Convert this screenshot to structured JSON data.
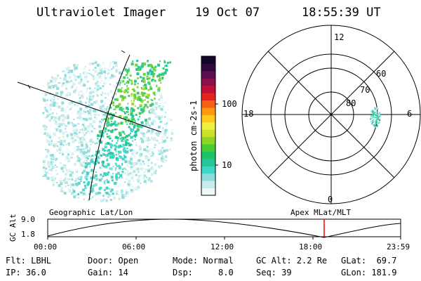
{
  "header": {
    "instrument": "Ultraviolet Imager",
    "date": "19 Oct 07",
    "time": "18:55:39 UT"
  },
  "colorbar": {
    "label": "photon cm-2s-1",
    "ticks": [
      "100",
      "10"
    ],
    "colors": [
      "#eef8f8",
      "#c6ecec",
      "#8fdcdc",
      "#3ed6c6",
      "#23c79a",
      "#1fc26a",
      "#47cc31",
      "#8ed625",
      "#cbe12b",
      "#f0f043",
      "#ffc81c",
      "#ff9710",
      "#f46014",
      "#e3241d",
      "#c10e36",
      "#8c0f4c",
      "#5e0c53",
      "#32093e",
      "#14052a"
    ]
  },
  "polar_plot": {
    "mlt_labels": [
      "12",
      "18",
      "6",
      "0"
    ],
    "mlat_labels": [
      "60",
      "70",
      "80"
    ]
  },
  "timeline": {
    "left_title": "Geographic Lat/Lon",
    "right_title": "Apex MLat/MLT",
    "ylabel": "GC Alt",
    "y_ticks": [
      "9.0",
      "1.8"
    ],
    "x_ticks": [
      "00:00",
      "06:00",
      "12:00",
      "18:00",
      "23:59"
    ],
    "marker_time": "18:55",
    "marker_color": "#ff0000"
  },
  "info": {
    "filter": "Flt: LBHL",
    "ip": "IP: 36.0",
    "door": "Door: Open",
    "gain": "Gain: 14",
    "mode": "Mode: Normal",
    "dsp": "Dsp:     8.0",
    "gc_alt": "GC Alt: 2.2 Re",
    "seq": "Seq: 39",
    "glat": "GLat:  69.7",
    "glon": "GLon: 181.9"
  }
}
